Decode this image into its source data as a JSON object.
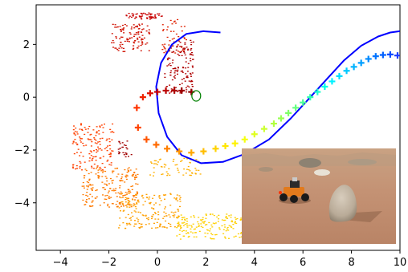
{
  "chart_data": {
    "type": "scatter",
    "title": "",
    "xlabel": "",
    "ylabel": "",
    "xlim": [
      -5,
      10
    ],
    "ylim": [
      -5.8,
      3.5
    ],
    "xticks": [
      -4,
      -2,
      0,
      2,
      4,
      6,
      8,
      10
    ],
    "xtick_labels": [
      "−4",
      "−2",
      "0",
      "2",
      "4",
      "6",
      "8",
      "10"
    ],
    "yticks": [
      2,
      0,
      -2,
      -4
    ],
    "ytick_labels": [
      "2",
      "0",
      "−2",
      "−4"
    ],
    "grid": false,
    "legend": "none",
    "colormap": "autumn (red → yellow) then green → cyan → blue",
    "reference_path": {
      "color": "#0000ff",
      "x": [
        2.6,
        1.9,
        1.2,
        0.6,
        0.15,
        -0.05,
        0.05,
        0.4,
        1.0,
        1.8,
        2.7,
        3.6,
        4.6,
        5.5,
        6.3,
        7.0,
        7.7,
        8.4,
        9.1,
        9.6,
        10.0
      ],
      "y": [
        2.45,
        2.5,
        2.4,
        2.0,
        1.3,
        0.4,
        -0.6,
        -1.5,
        -2.2,
        -2.5,
        -2.45,
        -2.15,
        -1.6,
        -0.8,
        0.0,
        0.7,
        1.4,
        1.95,
        2.3,
        2.45,
        2.5
      ]
    },
    "trajectory_markers": {
      "marker": "plus",
      "x": [
        1.4,
        1.0,
        0.7,
        0.35,
        0.0,
        -0.3,
        -0.6,
        -0.85,
        -0.8,
        -0.45,
        -0.05,
        0.4,
        0.9,
        1.4,
        1.9,
        2.4,
        2.8,
        3.2,
        3.6,
        4.0,
        4.4,
        4.8,
        5.1,
        5.4,
        5.7,
        6.0,
        6.3,
        6.6,
        6.9,
        7.2,
        7.5,
        7.8,
        8.1,
        8.4,
        8.7,
        9.0,
        9.3,
        9.6,
        9.9
      ],
      "y": [
        0.2,
        0.25,
        0.25,
        0.25,
        0.2,
        0.15,
        0.0,
        -0.4,
        -1.15,
        -1.6,
        -1.8,
        -1.95,
        -2.05,
        -2.1,
        -2.05,
        -1.95,
        -1.85,
        -1.75,
        -1.6,
        -1.4,
        -1.2,
        -1.0,
        -0.8,
        -0.6,
        -0.4,
        -0.2,
        0.0,
        0.2,
        0.4,
        0.6,
        0.8,
        1.0,
        1.15,
        1.3,
        1.45,
        1.55,
        1.6,
        1.62,
        1.58
      ],
      "colors": [
        "#8b0000",
        "#9b0000",
        "#ab0000",
        "#bb0000",
        "#cc0000",
        "#dd1100",
        "#ee2200",
        "#ff3300",
        "#ff4400",
        "#ff5500",
        "#ff6a00",
        "#ff7f00",
        "#ff9400",
        "#ffa800",
        "#ffbd00",
        "#ffd200",
        "#ffe600",
        "#fff200",
        "#f5ff10",
        "#e0ff20",
        "#ccff33",
        "#b3ff40",
        "#99ff55",
        "#7fff66",
        "#66ff80",
        "#4dff99",
        "#33ffb3",
        "#1affcc",
        "#00ffe6",
        "#00f2ff",
        "#00ddff",
        "#00c8ff",
        "#00b3ff",
        "#009eff",
        "#0089ff",
        "#0074ff",
        "#0060ff",
        "#004cff",
        "#1a3cff"
      ]
    },
    "point_clouds": [
      {
        "x": [
          -1.3,
          0.2
        ],
        "y": [
          2.95,
          3.2
        ],
        "color": "#c80000",
        "n": 55
      },
      {
        "x": [
          -1.9,
          -0.3
        ],
        "y": [
          1.7,
          2.8
        ],
        "color": "#d01000",
        "n": 110
      },
      {
        "x": [
          0.2,
          1.2
        ],
        "y": [
          1.6,
          3.0
        ],
        "color": "#e02000",
        "n": 45
      },
      {
        "x": [
          0.3,
          1.5
        ],
        "y": [
          0.1,
          2.2
        ],
        "color": "#b00000",
        "n": 140
      },
      {
        "x": [
          -1.6,
          -1.0
        ],
        "y": [
          -2.3,
          -1.6
        ],
        "color": "#a00000",
        "n": 25
      },
      {
        "x": [
          -3.5,
          -1.8
        ],
        "y": [
          -2.8,
          -0.9
        ],
        "color": "#ff4000",
        "n": 150
      },
      {
        "x": [
          -3.1,
          -0.8
        ],
        "y": [
          -4.2,
          -2.6
        ],
        "color": "#ff7a00",
        "n": 210
      },
      {
        "x": [
          -1.6,
          1.0
        ],
        "y": [
          -5.0,
          -3.6
        ],
        "color": "#ffa000",
        "n": 180
      },
      {
        "x": [
          0.8,
          3.5
        ],
        "y": [
          -5.4,
          -4.4
        ],
        "color": "#ffd000",
        "n": 160
      },
      {
        "x": [
          -0.3,
          1.8
        ],
        "y": [
          -3.0,
          -2.3
        ],
        "color": "#ffb000",
        "n": 60
      }
    ],
    "robot_start": {
      "x": 1.6,
      "y": 0.05,
      "color": "#008000",
      "marker": "circle"
    },
    "inset_image": {
      "content": "photo of a small tracked robot on a sandy desert surface beside a large boulder"
    }
  }
}
